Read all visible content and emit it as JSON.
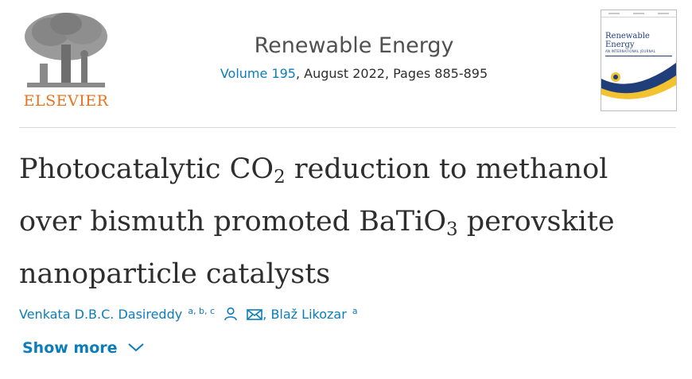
{
  "publisher": {
    "name": "ELSEVIER",
    "logo_icon": "tree-logo-icon"
  },
  "journal": {
    "title": "Renewable Energy",
    "volume_label": "Volume 195",
    "issue_rest": ", August 2022, Pages 885-895"
  },
  "cover": {
    "title": "Renewable Energy",
    "subtitle": "AN INTERNATIONAL JOURNAL"
  },
  "article": {
    "title_part1": "Photocatalytic CO",
    "title_sub1": "2",
    "title_part2": " reduction to methanol over bismuth promoted BaTiO",
    "title_sub2": "3",
    "title_part3": " perovskite nanoparticle catalysts"
  },
  "authors": [
    {
      "name": "Venkata D.B.C. Dasireddy",
      "affiliations": "a, b, c"
    },
    {
      "name": "Blaž Likozar",
      "affiliations": "a"
    }
  ],
  "author_sep": ",",
  "icons": {
    "person": "person-icon",
    "email": "email-icon",
    "chevron": "chevron-down-icon"
  },
  "colors": {
    "link": "#0c7dbb",
    "brand": "#e9711c",
    "text": "#2e2e2e"
  },
  "show_more": {
    "label": "Show more"
  }
}
